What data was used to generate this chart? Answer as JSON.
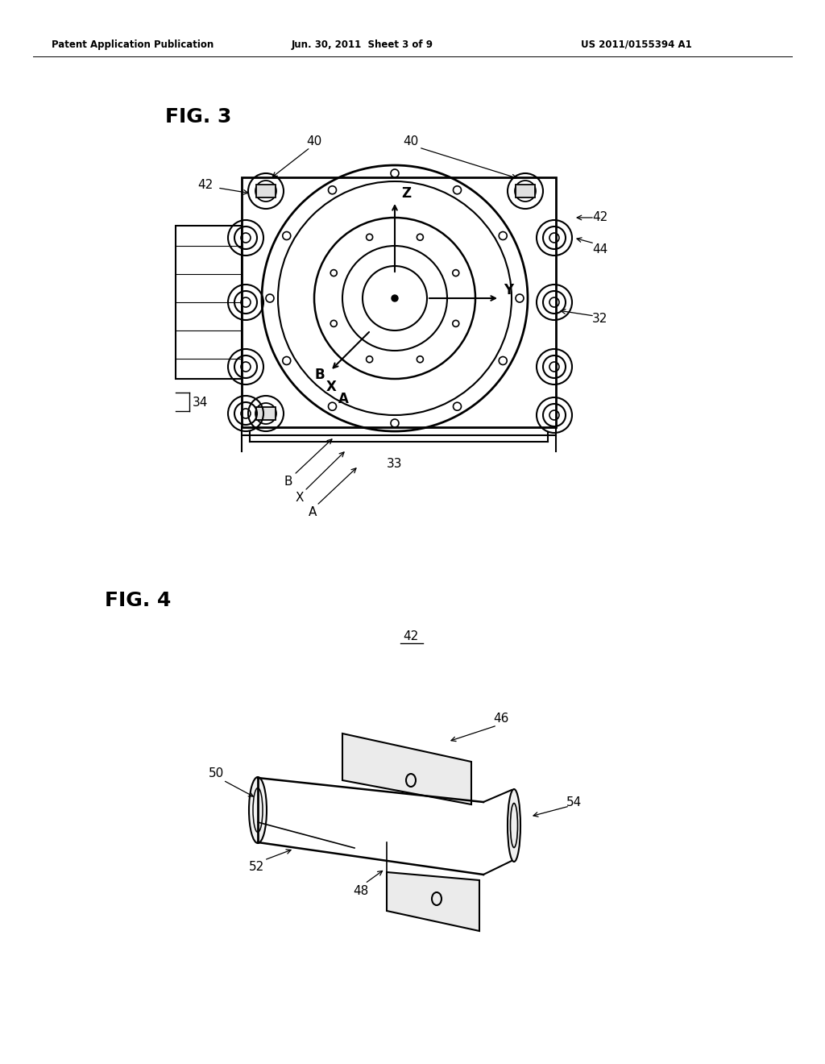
{
  "bg_color": "#ffffff",
  "header_left": "Patent Application Publication",
  "header_center": "Jun. 30, 2011  Sheet 3 of 9",
  "header_right": "US 2011/0155394 A1",
  "fig3_label": "FIG. 3",
  "fig4_label": "FIG. 4",
  "line_color": "#000000",
  "line_width": 1.5,
  "annotation_fontsize": 11,
  "header_fontsize": 9,
  "fig_label_fontsize": 18
}
